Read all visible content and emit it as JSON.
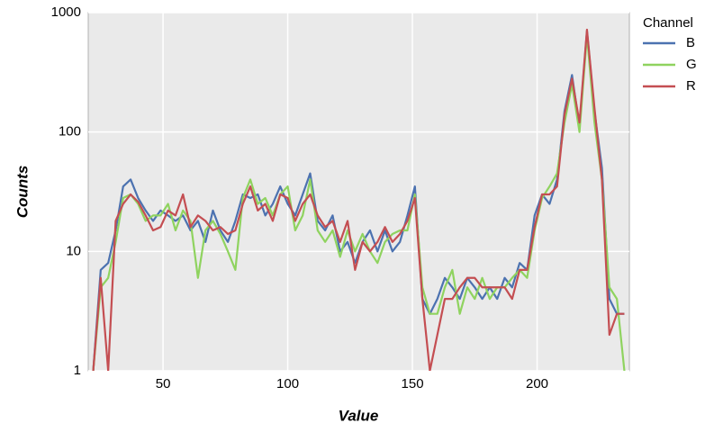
{
  "chart_data": {
    "type": "line",
    "x_label": "Value",
    "y_label": "Counts",
    "legend_title": "Channel",
    "legend": "right",
    "log_y": true,
    "grid": true,
    "xlim": [
      20,
      237
    ],
    "ylim": [
      1,
      1000
    ],
    "xticks": [
      50,
      100,
      150,
      200
    ],
    "yticks": [
      1,
      10,
      100,
      1000
    ],
    "x": [
      22,
      25,
      28,
      31,
      34,
      37,
      40,
      43,
      46,
      49,
      52,
      55,
      58,
      61,
      64,
      67,
      70,
      73,
      76,
      79,
      82,
      85,
      88,
      91,
      94,
      97,
      100,
      103,
      106,
      109,
      112,
      115,
      118,
      121,
      124,
      127,
      130,
      133,
      136,
      139,
      142,
      145,
      148,
      151,
      154,
      157,
      160,
      163,
      166,
      169,
      172,
      175,
      178,
      181,
      184,
      187,
      190,
      193,
      196,
      199,
      202,
      205,
      208,
      211,
      214,
      217,
      220,
      223,
      226,
      229,
      232,
      235
    ],
    "series": [
      {
        "name": "B",
        "color": "#4c72b0",
        "values": [
          1,
          7,
          8,
          15,
          35,
          40,
          28,
          22,
          18,
          22,
          20,
          18,
          20,
          15,
          18,
          12,
          22,
          15,
          12,
          18,
          30,
          28,
          30,
          20,
          25,
          35,
          25,
          20,
          30,
          45,
          18,
          15,
          20,
          10,
          12,
          8,
          12,
          15,
          10,
          15,
          10,
          12,
          20,
          35,
          4,
          3,
          4,
          6,
          5,
          4,
          6,
          5,
          4,
          5,
          4,
          6,
          5,
          8,
          7,
          20,
          30,
          25,
          40,
          150,
          300,
          110,
          700,
          150,
          50,
          4,
          3,
          3
        ]
      },
      {
        "name": "G",
        "color": "#8fd35f",
        "values": [
          1,
          5,
          6,
          12,
          28,
          30,
          25,
          18,
          20,
          20,
          25,
          15,
          22,
          18,
          6,
          15,
          18,
          14,
          10,
          7,
          28,
          40,
          25,
          28,
          20,
          30,
          35,
          15,
          20,
          40,
          15,
          12,
          15,
          9,
          15,
          10,
          14,
          10,
          8,
          12,
          14,
          15,
          15,
          30,
          5,
          3,
          3,
          5,
          7,
          3,
          5,
          4,
          6,
          4,
          5,
          5,
          6,
          7,
          6,
          15,
          28,
          35,
          45,
          120,
          250,
          100,
          650,
          120,
          40,
          5,
          4,
          1
        ]
      },
      {
        "name": "R",
        "color": "#c44e52",
        "values": [
          1,
          6,
          1,
          18,
          25,
          30,
          26,
          20,
          15,
          16,
          22,
          20,
          30,
          16,
          20,
          18,
          15,
          16,
          14,
          15,
          25,
          35,
          22,
          25,
          18,
          30,
          28,
          18,
          25,
          30,
          20,
          16,
          18,
          12,
          18,
          7,
          12,
          10,
          12,
          16,
          12,
          14,
          18,
          28,
          4,
          1,
          2,
          4,
          4,
          5,
          6,
          6,
          5,
          5,
          5,
          5,
          4,
          7,
          7,
          16,
          30,
          30,
          35,
          140,
          280,
          120,
          720,
          160,
          40,
          2,
          3,
          3
        ]
      }
    ]
  }
}
